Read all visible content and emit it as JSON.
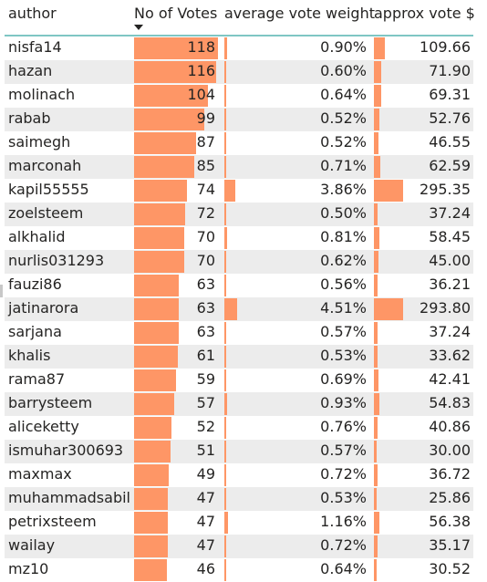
{
  "headers": {
    "author": "author",
    "votes": "No of Votes",
    "weight": "average vote weight",
    "usd": "approx vote $"
  },
  "colors": {
    "bar": "#fe9666",
    "header_rule": "#7fc6c4",
    "alt_row": "#ececec"
  },
  "sort_indicator": "sort-descending-icon",
  "rows": [
    {
      "author": "nisfa14",
      "votes": "118",
      "weight": "0.90%",
      "usd": "109.66"
    },
    {
      "author": "hazan",
      "votes": "116",
      "weight": "0.60%",
      "usd": "71.90"
    },
    {
      "author": "molinach",
      "votes": "104",
      "weight": "0.64%",
      "usd": "69.31"
    },
    {
      "author": "rabab",
      "votes": "99",
      "weight": "0.52%",
      "usd": "52.76"
    },
    {
      "author": "saimegh",
      "votes": "87",
      "weight": "0.52%",
      "usd": "46.55"
    },
    {
      "author": "marconah",
      "votes": "85",
      "weight": "0.71%",
      "usd": "62.59"
    },
    {
      "author": "kapil55555",
      "votes": "74",
      "weight": "3.86%",
      "usd": "295.35"
    },
    {
      "author": "zoelsteem",
      "votes": "72",
      "weight": "0.50%",
      "usd": "37.24"
    },
    {
      "author": "alkhalid",
      "votes": "70",
      "weight": "0.81%",
      "usd": "58.45"
    },
    {
      "author": "nurlis031293",
      "votes": "70",
      "weight": "0.62%",
      "usd": "45.00"
    },
    {
      "author": "fauzi86",
      "votes": "63",
      "weight": "0.56%",
      "usd": "36.21"
    },
    {
      "author": "jatinarora",
      "votes": "63",
      "weight": "4.51%",
      "usd": "293.80"
    },
    {
      "author": "sarjana",
      "votes": "63",
      "weight": "0.57%",
      "usd": "37.24"
    },
    {
      "author": "khalis",
      "votes": "61",
      "weight": "0.53%",
      "usd": "33.62"
    },
    {
      "author": "rama87",
      "votes": "59",
      "weight": "0.69%",
      "usd": "42.41"
    },
    {
      "author": "barrysteem",
      "votes": "57",
      "weight": "0.93%",
      "usd": "54.83"
    },
    {
      "author": "aliceketty",
      "votes": "52",
      "weight": "0.76%",
      "usd": "40.86"
    },
    {
      "author": "ismuhar300693",
      "votes": "51",
      "weight": "0.57%",
      "usd": "30.00"
    },
    {
      "author": "maxmax",
      "votes": "49",
      "weight": "0.72%",
      "usd": "36.72"
    },
    {
      "author": "muhammadsabil",
      "votes": "47",
      "weight": "0.53%",
      "usd": "25.86"
    },
    {
      "author": "petrixsteem",
      "votes": "47",
      "weight": "1.16%",
      "usd": "56.38"
    },
    {
      "author": "wailay",
      "votes": "47",
      "weight": "0.72%",
      "usd": "35.17"
    },
    {
      "author": "mz10",
      "votes": "46",
      "weight": "0.64%",
      "usd": "30.52"
    }
  ]
}
